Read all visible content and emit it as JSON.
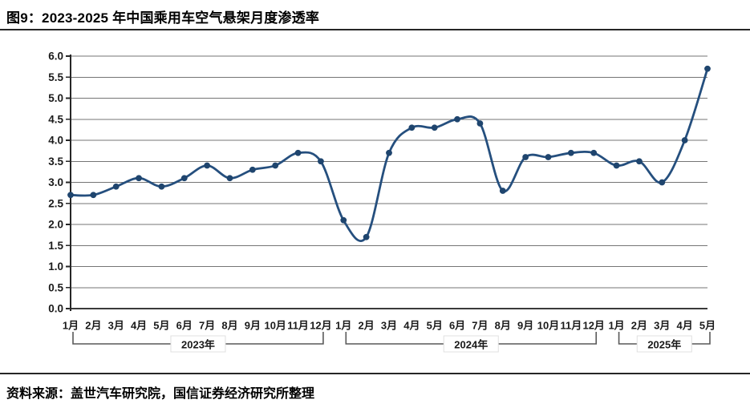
{
  "page": {
    "title": "图9：2023-2025 年中国乘用车空气悬架月度渗透率",
    "source": "资料来源：盖世汽车研究院，国信证券经济研究所整理"
  },
  "chart_data": {
    "type": "line",
    "title": "2023-2025 年中国乘用车空气悬架月度渗透率",
    "xlabel": "",
    "ylabel": "",
    "x": [
      "1月",
      "2月",
      "3月",
      "4月",
      "5月",
      "6月",
      "7月",
      "8月",
      "9月",
      "10月",
      "11月",
      "12月",
      "1月",
      "2月",
      "3月",
      "4月",
      "5月",
      "6月",
      "7月",
      "8月",
      "9月",
      "10月",
      "11月",
      "12月",
      "1月",
      "2月",
      "3月",
      "4月",
      "5月"
    ],
    "series": [
      {
        "name": "空气悬架月度渗透率",
        "values": [
          2.7,
          2.7,
          2.9,
          3.1,
          2.9,
          3.1,
          3.4,
          3.1,
          3.3,
          3.4,
          3.7,
          3.5,
          2.1,
          1.7,
          3.7,
          4.3,
          4.3,
          4.5,
          4.4,
          2.8,
          3.6,
          3.6,
          3.7,
          3.7,
          3.4,
          3.5,
          3.0,
          4.0,
          5.7
        ]
      }
    ],
    "year_groups": [
      {
        "label": "2023年",
        "start": 0,
        "end": 11
      },
      {
        "label": "2024年",
        "start": 12,
        "end": 23
      },
      {
        "label": "2025年",
        "start": 24,
        "end": 28
      }
    ],
    "ylim": [
      0.0,
      6.0
    ],
    "yticks": [
      "0.0",
      "0.5",
      "1.0",
      "1.5",
      "2.0",
      "2.5",
      "3.0",
      "3.5",
      "4.0",
      "4.5",
      "5.0",
      "5.5",
      "6.0"
    ],
    "grid": true,
    "smooth": true,
    "legend": "none",
    "line_color": "#254f7e",
    "marker_color": "#1f456e",
    "grid_color": "#757575",
    "axis_color": "#262626",
    "bracket_color": "#595959",
    "tick_label_color": "#1a1a1a"
  }
}
